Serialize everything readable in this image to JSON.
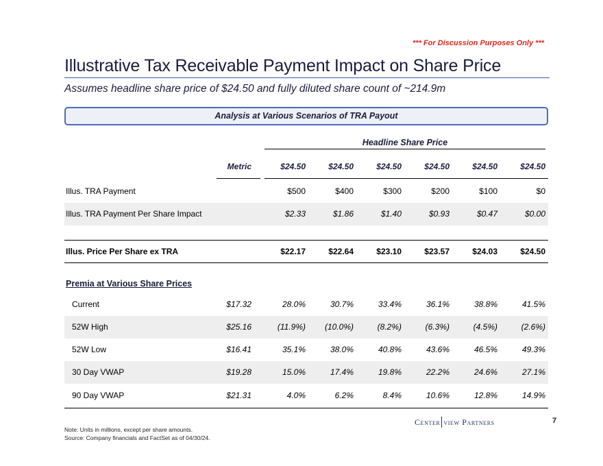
{
  "disclaimer": "*** For Discussion Purposes Only ***",
  "title": "Illustrative Tax Receivable Payment Impact on Share Price",
  "subtitle": "Assumes headline share price of $24.50 and fully diluted share count of ~214.9m",
  "banner": "Analysis at Various Scenarios of TRA Payout",
  "table": {
    "group_header": "Headline Share Price",
    "metric_header": "Metric",
    "price_headers": [
      "$24.50",
      "$24.50",
      "$24.50",
      "$24.50",
      "$24.50",
      "$24.50"
    ],
    "rows": [
      {
        "label": "Illus. TRA Payment",
        "metric": "",
        "values": [
          "$500",
          "$400",
          "$300",
          "$200",
          "$100",
          "$0"
        ]
      },
      {
        "label": "Illus. TRA Payment Per Share Impact",
        "metric": "",
        "values": [
          "$2.33",
          "$1.86",
          "$1.40",
          "$0.93",
          "$0.47",
          "$0.00"
        ]
      },
      {
        "label": "Illus. Price Per Share ex TRA",
        "metric": "",
        "values": [
          "$22.17",
          "$22.64",
          "$23.10",
          "$23.57",
          "$24.03",
          "$24.50"
        ]
      }
    ],
    "premia_heading": "Premia at Various Share Prices",
    "premia_rows": [
      {
        "label": "Current",
        "metric": "$17.32",
        "values": [
          "28.0%",
          "30.7%",
          "33.4%",
          "36.1%",
          "38.8%",
          "41.5%"
        ]
      },
      {
        "label": "52W High",
        "metric": "$25.16",
        "values": [
          "(11.9%)",
          "(10.0%)",
          "(8.2%)",
          "(6.3%)",
          "(4.5%)",
          "(2.6%)"
        ]
      },
      {
        "label": "52W Low",
        "metric": "$16.41",
        "values": [
          "35.1%",
          "38.0%",
          "40.8%",
          "43.6%",
          "46.5%",
          "49.3%"
        ]
      },
      {
        "label": "30 Day VWAP",
        "metric": "$19.28",
        "values": [
          "15.0%",
          "17.4%",
          "19.8%",
          "22.2%",
          "24.6%",
          "27.1%"
        ]
      },
      {
        "label": "90 Day VWAP",
        "metric": "$21.31",
        "values": [
          "4.0%",
          "6.2%",
          "8.4%",
          "10.6%",
          "12.8%",
          "14.9%"
        ]
      }
    ]
  },
  "notes": {
    "line1": "Note: Units in millions, except per share amounts.",
    "line2": "Source: Company financials and FactSet as of 04/30/24."
  },
  "logo": {
    "part1": "Center",
    "part2": "view Partners"
  },
  "page_number": "7"
}
